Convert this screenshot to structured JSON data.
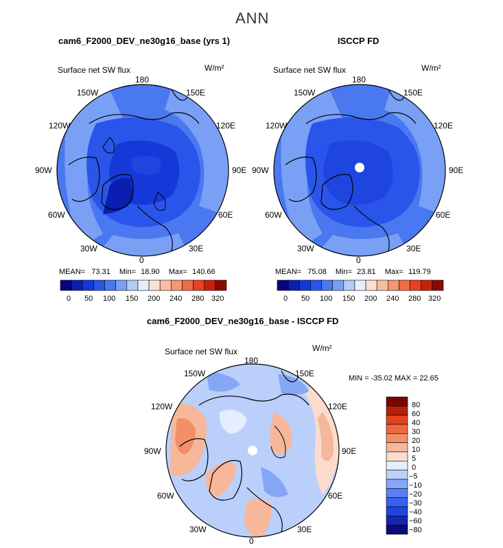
{
  "season": "ANN",
  "panels": [
    {
      "title": "cam6_F2000_DEV_ne30g16_base (yrs 1)",
      "variable": "Surface net SW flux",
      "units": "W/m²",
      "stats": {
        "mean_label": "MEAN=",
        "mean": "73.31",
        "min_label": "Min=",
        "min": "18.90",
        "max_label": "Max=",
        "max": "140.66"
      },
      "colorbar_ticks": [
        "0",
        "50",
        "100",
        "150",
        "200",
        "240",
        "280",
        "320"
      ]
    },
    {
      "title": "ISCCP FD",
      "variable": "Surface net SW flux",
      "units": "W/m²",
      "stats": {
        "mean_label": "MEAN=",
        "mean": "75.08",
        "min_label": "Min=",
        "min": "23.81",
        "max_label": "Max=",
        "max": "119.79"
      },
      "colorbar_ticks": [
        "0",
        "50",
        "100",
        "150",
        "200",
        "240",
        "280",
        "320"
      ]
    }
  ],
  "diff": {
    "title": "cam6_F2000_DEV_ne30g16_base - ISCCP FD",
    "variable": "Surface net SW flux",
    "units": "W/m²",
    "stats": "MIN = -35.02 MAX = 22.65",
    "levels": [
      "80",
      "60",
      "40",
      "30",
      "20",
      "10",
      "5",
      "0",
      "−5",
      "−10",
      "−20",
      "−30",
      "−40",
      "−60",
      "−80"
    ]
  },
  "longitude_labels": [
    "180",
    "150E",
    "120E",
    "90E",
    "60E",
    "30E",
    "0",
    "30W",
    "60W",
    "90W",
    "120W",
    "150W"
  ],
  "colors": {
    "abs_scale": [
      "#08057f",
      "#0a1fb0",
      "#1439d8",
      "#2a55ea",
      "#4a78f0",
      "#7aa0f5",
      "#b4cbf8",
      "#e4eefc",
      "#fde0d0",
      "#f9bda2",
      "#f59770",
      "#f06c45",
      "#e84220",
      "#c8200e",
      "#8a0a06"
    ],
    "diff_scale": [
      "#0a0a7a",
      "#1426b0",
      "#1f45e0",
      "#3b62ee",
      "#5a80f2",
      "#86a6f6",
      "#bad0fb",
      "#e4eefd",
      "#fbdccc",
      "#f6b79a",
      "#f18f68",
      "#ec6840",
      "#e0431f",
      "#b81f0b",
      "#7a0604"
    ]
  }
}
